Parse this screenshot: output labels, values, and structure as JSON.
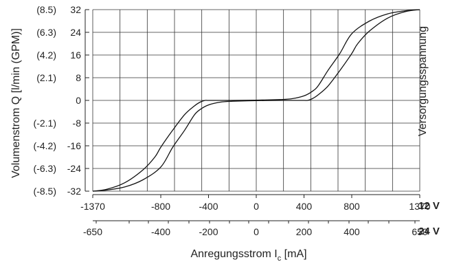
{
  "chart_data": {
    "type": "line",
    "title": "",
    "ylabel": "Volumenstrom Q [l/min (GPM)]",
    "ylabel_right": "Versorgungsspannung",
    "xlabel_prefix": "Anregungsstrom I",
    "xlabel_sub": "c",
    "xlabel_suffix": " [mA]",
    "y_ticks": [
      32,
      24,
      16,
      8,
      0,
      -8,
      -16,
      -24,
      -32
    ],
    "y_tick_labels": [
      "32",
      "24",
      "16",
      "8",
      "0",
      "-8",
      "-16",
      "-24",
      "-32"
    ],
    "y_gpm_labels": [
      "(8.5)",
      "(6.3)",
      "(4.2)",
      "(2.1)",
      "",
      "(-2.1)",
      "(-4.2)",
      "(-6.3)",
      "(-8.5)"
    ],
    "ylim": [
      -32,
      32
    ],
    "xlim": [
      -1370,
      1370
    ],
    "x_ticks_12v": [
      -1370,
      -800,
      -400,
      0,
      400,
      800,
      1370
    ],
    "x_tick_labels_12v": [
      "-1370",
      "-800",
      "-400",
      "0",
      "400",
      "800",
      "1370"
    ],
    "x_axis_12v_label": "12 V",
    "x_ticks_24v": [
      -650,
      -400,
      -200,
      0,
      200,
      400,
      650
    ],
    "x_tick_labels_24v": [
      "-650",
      "-400",
      "-200",
      "0",
      "200",
      "400",
      "650"
    ],
    "x_axis_24v_label": "24 V",
    "grid": true,
    "series": [
      {
        "x": [
          -1370,
          -1250,
          -1100,
          -950,
          -850,
          -800,
          -700,
          -600,
          -520,
          -470,
          -430,
          -400,
          -300,
          -200,
          0,
          200,
          300,
          400,
          470,
          520,
          600,
          700,
          800,
          950,
          1100,
          1250,
          1370
        ],
        "y": [
          -32,
          -31.3,
          -29,
          -24.5,
          -20,
          -16.5,
          -10.5,
          -5,
          -2,
          -0.6,
          0,
          0,
          0,
          0,
          0.1,
          0.3,
          0.6,
          1.6,
          3.2,
          5.2,
          10.5,
          16.5,
          23.5,
          28,
          30.5,
          31.6,
          32
        ]
      },
      {
        "x": [
          -1370,
          -1250,
          -1100,
          -950,
          -800,
          -700,
          -600,
          -520,
          -470,
          -400,
          -300,
          -200,
          0,
          200,
          300,
          400,
          430,
          470,
          520,
          600,
          700,
          800,
          850,
          950,
          1100,
          1250,
          1370
        ],
        "y": [
          -32,
          -31.6,
          -30.5,
          -28,
          -23.5,
          -16.5,
          -10.5,
          -5.2,
          -3.2,
          -1.6,
          -0.6,
          -0.3,
          -0.1,
          0,
          0,
          0,
          0,
          0.6,
          2,
          5,
          10.5,
          16.5,
          20,
          24.5,
          29,
          31.3,
          32
        ]
      }
    ]
  }
}
